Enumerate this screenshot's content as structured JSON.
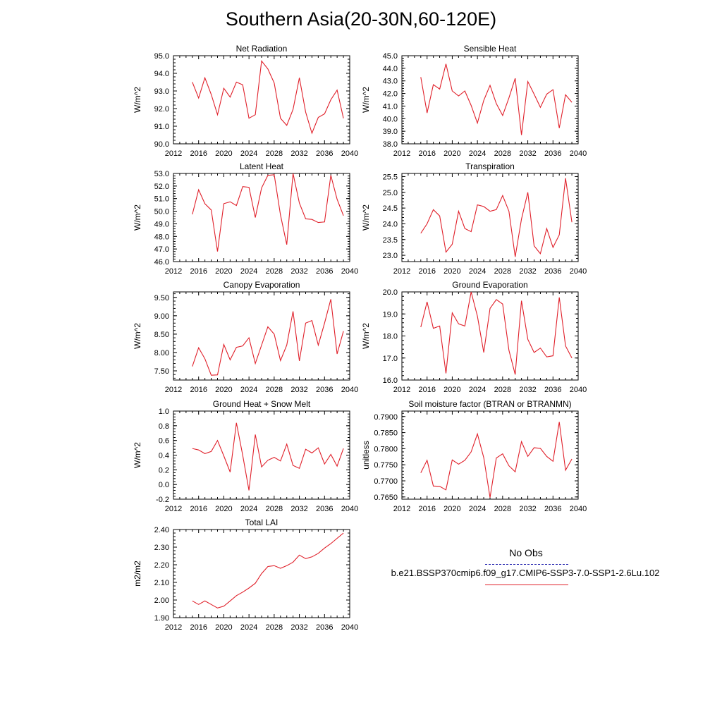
{
  "title": "Southern Asia(20-30N,60-120E)",
  "legend": {
    "obs_label": "No Obs",
    "case_label": "b.e21.BSSP370cmip6.f09_g17.CMIP6-SSP3-7.0-SSP1-2.6Lu.102",
    "obs_color": "#2b2bb0",
    "case_color": "#e0202a"
  },
  "chart_data": [
    {
      "type": "line",
      "title": "Net Radiation",
      "ylabel": "W/m^2",
      "xlim": [
        2012,
        2040
      ],
      "ylim": [
        90.0,
        95.0
      ],
      "xticks": [
        "2012",
        "2016",
        "2020",
        "2024",
        "2028",
        "2032",
        "2036",
        "2040"
      ],
      "yticks": [
        "90.0",
        "91.0",
        "92.0",
        "93.0",
        "94.0",
        "95.0"
      ],
      "series": [
        {
          "color": "#e0202a",
          "x": [
            2015,
            2016,
            2017,
            2018,
            2019,
            2020,
            2021,
            2022,
            2023,
            2024,
            2025,
            2026,
            2027,
            2028,
            2029,
            2030,
            2031,
            2032,
            2033,
            2034,
            2035,
            2036,
            2037,
            2038,
            2039
          ],
          "y": [
            93.5,
            92.6,
            93.75,
            92.8,
            91.65,
            93.15,
            92.65,
            93.5,
            93.35,
            91.45,
            91.65,
            94.7,
            94.25,
            93.45,
            91.45,
            91.05,
            91.95,
            93.75,
            91.8,
            90.6,
            91.5,
            91.7,
            92.5,
            93.05,
            91.45
          ]
        }
      ]
    },
    {
      "type": "line",
      "title": "Sensible Heat",
      "ylabel": "W/m^2",
      "xlim": [
        2012,
        2040
      ],
      "ylim": [
        38.0,
        45.0
      ],
      "xticks": [
        "2012",
        "2016",
        "2020",
        "2024",
        "2028",
        "2032",
        "2036",
        "2040"
      ],
      "yticks": [
        "38.0",
        "39.0",
        "40.0",
        "41.0",
        "42.0",
        "43.0",
        "44.0",
        "45.0"
      ],
      "series": [
        {
          "color": "#e0202a",
          "x": [
            2015,
            2016,
            2017,
            2018,
            2019,
            2020,
            2021,
            2022,
            2023,
            2024,
            2025,
            2026,
            2027,
            2028,
            2029,
            2030,
            2031,
            2032,
            2033,
            2034,
            2035,
            2036,
            2037,
            2038,
            2039
          ],
          "y": [
            43.3,
            40.45,
            42.7,
            42.35,
            44.35,
            42.2,
            41.8,
            42.2,
            41.05,
            39.65,
            41.45,
            42.65,
            41.2,
            40.25,
            41.65,
            43.2,
            38.7,
            42.95,
            41.95,
            40.9,
            41.95,
            42.3,
            39.25,
            41.9,
            41.3
          ]
        }
      ]
    },
    {
      "type": "line",
      "title": "Latent Heat",
      "ylabel": "W/m^2",
      "xlim": [
        2012,
        2040
      ],
      "ylim": [
        46.0,
        53.0
      ],
      "xticks": [
        "2012",
        "2016",
        "2020",
        "2024",
        "2028",
        "2032",
        "2036",
        "2040"
      ],
      "yticks": [
        "46.0",
        "47.0",
        "48.0",
        "49.0",
        "50.0",
        "51.0",
        "52.0",
        "53.0"
      ],
      "series": [
        {
          "color": "#e0202a",
          "x": [
            2015,
            2016,
            2017,
            2018,
            2019,
            2020,
            2021,
            2022,
            2023,
            2024,
            2025,
            2026,
            2027,
            2028,
            2029,
            2030,
            2031,
            2032,
            2033,
            2034,
            2035,
            2036,
            2037,
            2038,
            2039
          ],
          "y": [
            49.75,
            51.7,
            50.6,
            50.1,
            46.8,
            50.6,
            50.75,
            50.45,
            51.95,
            51.9,
            49.5,
            51.85,
            52.85,
            52.9,
            49.7,
            47.35,
            53.0,
            50.65,
            49.4,
            49.35,
            49.1,
            49.15,
            52.85,
            50.95,
            49.65
          ]
        }
      ]
    },
    {
      "type": "line",
      "title": "Transpiration",
      "ylabel": "W/m^2",
      "xlim": [
        2012,
        2040
      ],
      "ylim": [
        22.8,
        25.6
      ],
      "xticks": [
        "2012",
        "2016",
        "2020",
        "2024",
        "2028",
        "2032",
        "2036",
        "2040"
      ],
      "yticks": [
        "23.0",
        "23.5",
        "24.0",
        "24.5",
        "25.0",
        "25.5"
      ],
      "series": [
        {
          "color": "#e0202a",
          "x": [
            2015,
            2016,
            2017,
            2018,
            2019,
            2020,
            2021,
            2022,
            2023,
            2024,
            2025,
            2026,
            2027,
            2028,
            2029,
            2030,
            2031,
            2032,
            2033,
            2034,
            2035,
            2036,
            2037,
            2038,
            2039
          ],
          "y": [
            23.7,
            24.0,
            24.45,
            24.25,
            23.1,
            23.35,
            24.4,
            23.85,
            23.75,
            24.6,
            24.55,
            24.4,
            24.45,
            24.9,
            24.4,
            22.95,
            24.15,
            25.0,
            23.3,
            23.05,
            23.85,
            23.25,
            23.65,
            25.45,
            24.05
          ]
        }
      ]
    },
    {
      "type": "line",
      "title": "Canopy Evaporation",
      "ylabel": "W/m^2",
      "xlim": [
        2012,
        2040
      ],
      "ylim": [
        7.25,
        9.65
      ],
      "xticks": [
        "2012",
        "2016",
        "2020",
        "2024",
        "2028",
        "2032",
        "2036",
        "2040"
      ],
      "yticks": [
        "7.50",
        "8.00",
        "8.50",
        "9.00",
        "9.50"
      ],
      "series": [
        {
          "color": "#e0202a",
          "x": [
            2015,
            2016,
            2017,
            2018,
            2019,
            2020,
            2021,
            2022,
            2023,
            2024,
            2025,
            2026,
            2027,
            2028,
            2029,
            2030,
            2031,
            2032,
            2033,
            2034,
            2035,
            2036,
            2037,
            2038,
            2039
          ],
          "y": [
            7.62,
            8.13,
            7.83,
            7.38,
            7.39,
            8.22,
            7.8,
            8.14,
            8.18,
            8.4,
            7.7,
            8.2,
            8.7,
            8.5,
            7.78,
            8.2,
            9.12,
            7.77,
            8.8,
            8.87,
            8.2,
            8.8,
            9.45,
            7.96,
            8.58
          ]
        }
      ]
    },
    {
      "type": "line",
      "title": "Ground Evaporation",
      "ylabel": "W/m^2",
      "xlim": [
        2012,
        2040
      ],
      "ylim": [
        16.0,
        20.0
      ],
      "xticks": [
        "2012",
        "2016",
        "2020",
        "2024",
        "2028",
        "2032",
        "2036",
        "2040"
      ],
      "yticks": [
        "16.0",
        "17.0",
        "18.0",
        "19.0",
        "20.0"
      ],
      "series": [
        {
          "color": "#e0202a",
          "x": [
            2015,
            2016,
            2017,
            2018,
            2019,
            2020,
            2021,
            2022,
            2023,
            2024,
            2025,
            2026,
            2027,
            2028,
            2029,
            2030,
            2031,
            2032,
            2033,
            2034,
            2035,
            2036,
            2037,
            2038,
            2039
          ],
          "y": [
            18.4,
            19.55,
            18.35,
            18.45,
            16.3,
            19.05,
            18.55,
            18.45,
            20.0,
            18.9,
            17.25,
            19.25,
            19.65,
            19.45,
            17.35,
            16.25,
            19.6,
            17.85,
            17.25,
            17.45,
            17.05,
            17.1,
            19.75,
            17.55,
            17.0
          ]
        }
      ]
    },
    {
      "type": "line",
      "title": "Ground Heat + Snow Melt",
      "ylabel": "W/m^2",
      "xlim": [
        2012,
        2040
      ],
      "ylim": [
        -0.2,
        1.0
      ],
      "xticks": [
        "2012",
        "2016",
        "2020",
        "2024",
        "2028",
        "2032",
        "2036",
        "2040"
      ],
      "yticks": [
        "-0.2",
        "0.0",
        "0.2",
        "0.4",
        "0.6",
        "0.8",
        "1.0"
      ],
      "series": [
        {
          "color": "#e0202a",
          "x": [
            2015,
            2016,
            2017,
            2018,
            2019,
            2020,
            2021,
            2022,
            2023,
            2024,
            2025,
            2026,
            2027,
            2028,
            2029,
            2030,
            2031,
            2032,
            2033,
            2034,
            2035,
            2036,
            2037,
            2038,
            2039
          ],
          "y": [
            0.49,
            0.47,
            0.42,
            0.45,
            0.6,
            0.39,
            0.17,
            0.84,
            0.4,
            -0.08,
            0.68,
            0.24,
            0.33,
            0.37,
            0.32,
            0.55,
            0.26,
            0.22,
            0.48,
            0.43,
            0.5,
            0.28,
            0.41,
            0.25,
            0.49
          ]
        }
      ]
    },
    {
      "type": "line",
      "title": "Soil moisture factor (BTRAN or BTRANMN)",
      "ylabel": "unitless",
      "xlim": [
        2012,
        2040
      ],
      "ylim": [
        0.7643,
        0.7917
      ],
      "xticks": [
        "2012",
        "2016",
        "2020",
        "2024",
        "2028",
        "2032",
        "2036",
        "2040"
      ],
      "yticks": [
        "0.7650",
        "0.7700",
        "0.7750",
        "0.7800",
        "0.7850",
        "0.7900"
      ],
      "series": [
        {
          "color": "#e0202a",
          "x": [
            2015,
            2016,
            2017,
            2018,
            2019,
            2020,
            2021,
            2022,
            2023,
            2024,
            2025,
            2026,
            2027,
            2028,
            2029,
            2030,
            2031,
            2032,
            2033,
            2034,
            2035,
            2036,
            2037,
            2038,
            2039
          ],
          "y": [
            0.7725,
            0.7764,
            0.7684,
            0.7683,
            0.7672,
            0.7765,
            0.7752,
            0.7764,
            0.779,
            0.7846,
            0.7772,
            0.7648,
            0.7771,
            0.7784,
            0.7747,
            0.7728,
            0.7822,
            0.7776,
            0.7803,
            0.7801,
            0.7776,
            0.7761,
            0.7883,
            0.7733,
            0.7768
          ]
        }
      ]
    },
    {
      "type": "line",
      "title": "Total LAI",
      "ylabel": "m2/m2",
      "xlim": [
        2012,
        2040
      ],
      "ylim": [
        1.9,
        2.4
      ],
      "xticks": [
        "2012",
        "2016",
        "2020",
        "2024",
        "2028",
        "2032",
        "2036",
        "2040"
      ],
      "yticks": [
        "1.90",
        "2.00",
        "2.10",
        "2.20",
        "2.30",
        "2.40"
      ],
      "series": [
        {
          "color": "#e0202a",
          "x": [
            2015,
            2016,
            2017,
            2018,
            2019,
            2020,
            2021,
            2022,
            2023,
            2024,
            2025,
            2026,
            2027,
            2028,
            2029,
            2030,
            2031,
            2032,
            2033,
            2034,
            2035,
            2036,
            2037,
            2038,
            2039
          ],
          "y": [
            1.995,
            1.975,
            1.995,
            1.975,
            1.955,
            1.965,
            1.995,
            2.025,
            2.045,
            2.068,
            2.095,
            2.15,
            2.19,
            2.195,
            2.18,
            2.195,
            2.215,
            2.255,
            2.235,
            2.245,
            2.265,
            2.295,
            2.32,
            2.35,
            2.38
          ]
        }
      ]
    }
  ]
}
